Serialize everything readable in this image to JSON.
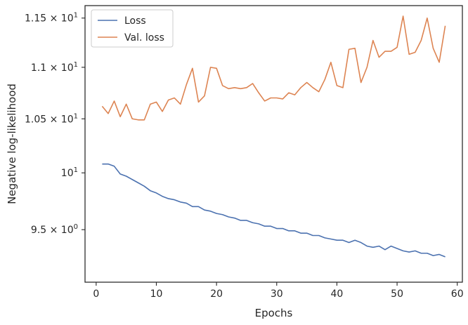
{
  "chart_data": {
    "type": "line",
    "xlabel": "Epochs",
    "ylabel": "Negative log-likelihood",
    "xlim": [
      -1.85,
      60.85
    ],
    "ylim": [
      9.06,
      11.63
    ],
    "yscale": "log",
    "grid": false,
    "legend_position": "top-left",
    "x_ticks": [
      {
        "value": 0,
        "label": "0"
      },
      {
        "value": 10,
        "label": "10"
      },
      {
        "value": 20,
        "label": "20"
      },
      {
        "value": 30,
        "label": "30"
      },
      {
        "value": 40,
        "label": "40"
      },
      {
        "value": 50,
        "label": "50"
      },
      {
        "value": 60,
        "label": "60"
      }
    ],
    "y_ticks": [
      {
        "value": 9.5,
        "mantissa": "9.5",
        "times": "×",
        "base": "10",
        "exp": "0"
      },
      {
        "value": 10,
        "mantissa": "",
        "times": "",
        "base": "10",
        "exp": "1"
      },
      {
        "value": 10.5,
        "mantissa": "1.05",
        "times": "×",
        "base": "10",
        "exp": "1"
      },
      {
        "value": 11,
        "mantissa": "1.1",
        "times": "×",
        "base": "10",
        "exp": "1"
      },
      {
        "value": 11.5,
        "mantissa": "1.15",
        "times": "×",
        "base": "10",
        "exp": "1"
      }
    ],
    "x": [
      1,
      2,
      3,
      4,
      5,
      6,
      7,
      8,
      9,
      10,
      11,
      12,
      13,
      14,
      15,
      16,
      17,
      18,
      19,
      20,
      21,
      22,
      23,
      24,
      25,
      26,
      27,
      28,
      29,
      30,
      31,
      32,
      33,
      34,
      35,
      36,
      37,
      38,
      39,
      40,
      41,
      42,
      43,
      44,
      45,
      46,
      47,
      48,
      49,
      50,
      51,
      52,
      53,
      54,
      55,
      56,
      57,
      58
    ],
    "series": [
      {
        "name": "Loss",
        "color": "#4c72b0",
        "values": [
          10.08,
          10.08,
          10.06,
          9.99,
          9.97,
          9.94,
          9.91,
          9.88,
          9.84,
          9.82,
          9.79,
          9.77,
          9.76,
          9.74,
          9.73,
          9.7,
          9.7,
          9.67,
          9.66,
          9.64,
          9.63,
          9.61,
          9.6,
          9.58,
          9.58,
          9.56,
          9.55,
          9.53,
          9.53,
          9.51,
          9.51,
          9.49,
          9.49,
          9.47,
          9.47,
          9.45,
          9.45,
          9.43,
          9.42,
          9.41,
          9.41,
          9.39,
          9.41,
          9.39,
          9.36,
          9.35,
          9.36,
          9.33,
          9.36,
          9.34,
          9.32,
          9.31,
          9.32,
          9.3,
          9.3,
          9.28,
          9.29,
          9.27
        ]
      },
      {
        "name": "Val. loss",
        "color": "#dd8452",
        "values": [
          10.62,
          10.55,
          10.67,
          10.52,
          10.64,
          10.5,
          10.49,
          10.49,
          10.64,
          10.66,
          10.57,
          10.68,
          10.7,
          10.64,
          10.83,
          10.99,
          10.66,
          10.72,
          11.0,
          10.99,
          10.82,
          10.79,
          10.8,
          10.79,
          10.8,
          10.84,
          10.75,
          10.67,
          10.7,
          10.7,
          10.69,
          10.75,
          10.73,
          10.8,
          10.85,
          10.8,
          10.76,
          10.88,
          11.05,
          10.82,
          10.8,
          11.18,
          11.19,
          10.85,
          11.0,
          11.27,
          11.1,
          11.16,
          11.16,
          11.2,
          11.52,
          11.13,
          11.15,
          11.27,
          11.5,
          11.19,
          11.05,
          11.42
        ]
      }
    ]
  }
}
